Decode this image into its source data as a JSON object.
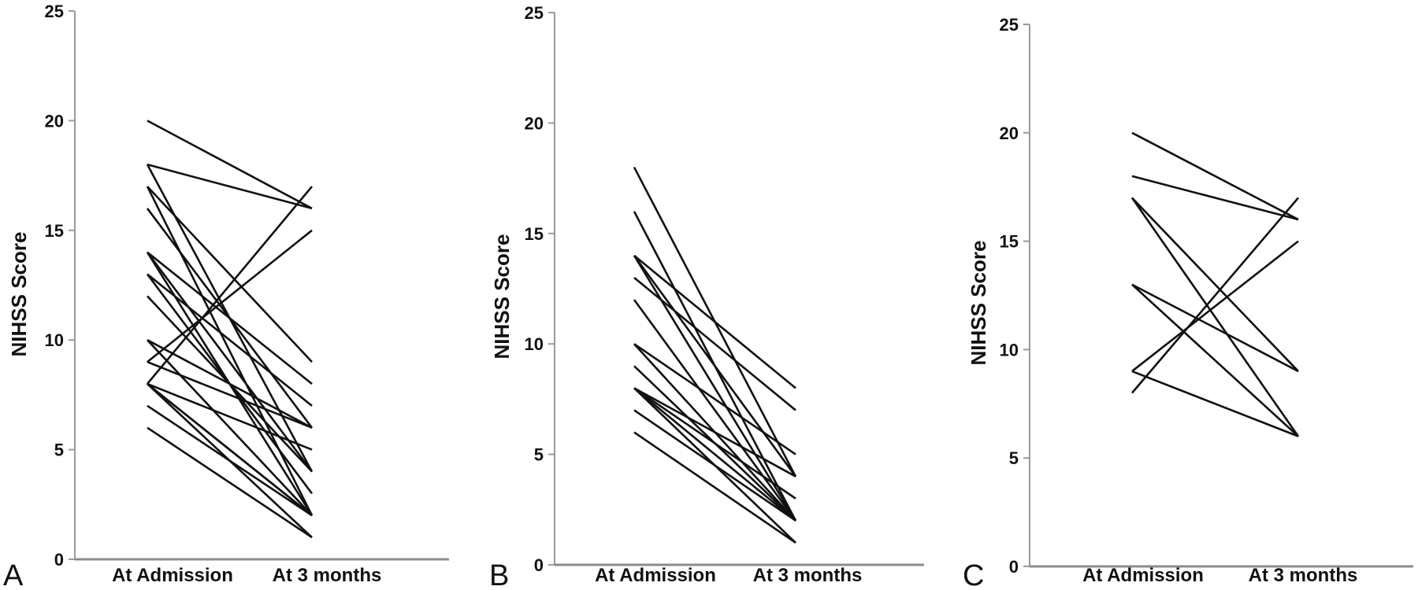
{
  "chart_data": [
    {
      "type": "line",
      "panel_label": "A",
      "ylabel": "NIHSS Score",
      "xlabel": "",
      "categories": [
        "At Admission",
        "At 3  months"
      ],
      "ylim": [
        0,
        25
      ],
      "yticks": [
        0,
        5,
        10,
        15,
        20,
        25
      ],
      "grid": false,
      "series": [
        {
          "values": [
            20,
            16
          ]
        },
        {
          "values": [
            18,
            16
          ]
        },
        {
          "values": [
            18,
            4
          ]
        },
        {
          "values": [
            17,
            9
          ]
        },
        {
          "values": [
            17,
            2
          ]
        },
        {
          "values": [
            16,
            6
          ]
        },
        {
          "values": [
            14,
            8
          ]
        },
        {
          "values": [
            14,
            4
          ]
        },
        {
          "values": [
            14,
            2
          ]
        },
        {
          "values": [
            13,
            7
          ]
        },
        {
          "values": [
            13,
            3
          ]
        },
        {
          "values": [
            12,
            4
          ]
        },
        {
          "values": [
            10,
            6
          ]
        },
        {
          "values": [
            10,
            2
          ]
        },
        {
          "values": [
            9,
            15
          ]
        },
        {
          "values": [
            9,
            6
          ]
        },
        {
          "values": [
            8,
            17
          ]
        },
        {
          "values": [
            8,
            5
          ]
        },
        {
          "values": [
            8,
            2
          ]
        },
        {
          "values": [
            8,
            2
          ]
        },
        {
          "values": [
            8,
            1
          ]
        },
        {
          "values": [
            7,
            2
          ]
        },
        {
          "values": [
            6,
            1
          ]
        }
      ]
    },
    {
      "type": "line",
      "panel_label": "B",
      "ylabel": "NIHSS Score",
      "xlabel": "",
      "categories": [
        "At Admission",
        "At 3 months"
      ],
      "ylim": [
        0,
        25
      ],
      "yticks": [
        0,
        5,
        10,
        15,
        20,
        25
      ],
      "grid": false,
      "series": [
        {
          "values": [
            18,
            4
          ]
        },
        {
          "values": [
            16,
            2
          ]
        },
        {
          "values": [
            14,
            8
          ]
        },
        {
          "values": [
            14,
            4
          ]
        },
        {
          "values": [
            14,
            2
          ]
        },
        {
          "values": [
            13,
            7
          ]
        },
        {
          "values": [
            12,
            2
          ]
        },
        {
          "values": [
            10,
            5
          ]
        },
        {
          "values": [
            10,
            2
          ]
        },
        {
          "values": [
            9,
            2
          ]
        },
        {
          "values": [
            8,
            4
          ]
        },
        {
          "values": [
            8,
            3
          ]
        },
        {
          "values": [
            8,
            2
          ]
        },
        {
          "values": [
            8,
            1
          ]
        },
        {
          "values": [
            7,
            2
          ]
        },
        {
          "values": [
            6,
            1
          ]
        }
      ]
    },
    {
      "type": "line",
      "panel_label": "C",
      "ylabel": "NIHSS Score",
      "xlabel": "",
      "categories": [
        "At Admission",
        "At 3 months"
      ],
      "ylim": [
        0,
        25
      ],
      "yticks": [
        0,
        5,
        10,
        15,
        20,
        25
      ],
      "grid": false,
      "series": [
        {
          "values": [
            20,
            16
          ]
        },
        {
          "values": [
            18,
            16
          ]
        },
        {
          "values": [
            17,
            9
          ]
        },
        {
          "values": [
            17,
            6
          ]
        },
        {
          "values": [
            13,
            9
          ]
        },
        {
          "values": [
            13,
            6
          ]
        },
        {
          "values": [
            9,
            15
          ]
        },
        {
          "values": [
            9,
            6
          ]
        },
        {
          "values": [
            8,
            17
          ]
        }
      ]
    }
  ]
}
